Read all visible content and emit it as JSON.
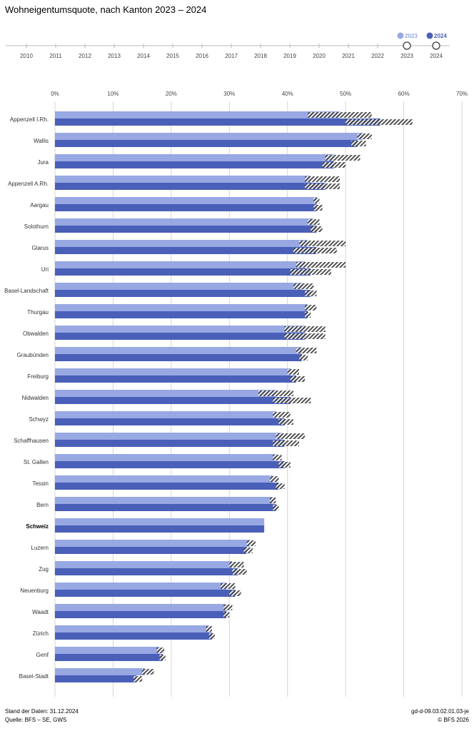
{
  "title": "Wohneigentumsquote, nach Kanton 2023 – 2024",
  "timeline": {
    "years": [
      "2010",
      "2011",
      "2012",
      "2013",
      "2014",
      "2015",
      "2016",
      "2017",
      "2018",
      "2019",
      "2020",
      "2021",
      "2022",
      "2023",
      "2024"
    ],
    "selected": [
      "2023",
      "2024"
    ],
    "legend": [
      {
        "label": "2023",
        "color": "#98a8e3"
      },
      {
        "label": "2024",
        "color": "#4a5fb8"
      }
    ]
  },
  "colors": {
    "bar_2023": "#98a8e3",
    "bar_2024": "#4a5fb8",
    "grid": "#d4d4d4",
    "hatch": "#333333"
  },
  "chart_data": {
    "type": "bar",
    "orientation": "horizontal",
    "xlim": [
      0,
      70
    ],
    "x_ticks": [
      "0%",
      "10%",
      "20%",
      "30%",
      "40%",
      "50%",
      "60%",
      "70%"
    ],
    "confidence_interval_shown": true,
    "series": [
      {
        "name": "2023",
        "values": [
          49.0,
          53.0,
          48.0,
          44.0,
          45.0,
          44.5,
          43.5,
          43.0,
          42.5,
          43.5,
          43.0,
          42.5,
          40.5,
          38.0,
          38.0,
          39.0,
          38.0,
          37.5,
          37.5,
          36.0,
          33.5,
          30.5,
          29.5,
          29.5,
          26.5,
          18.0,
          15.5
        ],
        "ci": [
          [
            43.5,
            54.5
          ],
          [
            52.0,
            54.5
          ],
          [
            46.5,
            52.5
          ],
          [
            43.0,
            49.0
          ],
          [
            44.5,
            45.5
          ],
          [
            43.5,
            45.5
          ],
          [
            42.0,
            50.0
          ],
          [
            41.5,
            50.0
          ],
          [
            41.0,
            44.5
          ],
          [
            43.0,
            45.0
          ],
          [
            39.5,
            46.5
          ],
          [
            41.5,
            45.0
          ],
          [
            40.0,
            42.0
          ],
          [
            35.0,
            41.0
          ],
          [
            37.5,
            40.5
          ],
          [
            38.0,
            43.0
          ],
          [
            37.5,
            39.0
          ],
          [
            37.0,
            38.5
          ],
          [
            37.0,
            38.0
          ],
          [
            35.8,
            36.2
          ],
          [
            33.0,
            34.5
          ],
          [
            30.0,
            32.5
          ],
          [
            28.5,
            31.0
          ],
          [
            29.0,
            30.5
          ],
          [
            26.0,
            27.0
          ],
          [
            17.5,
            18.8
          ],
          [
            15.0,
            17.0
          ]
        ]
      },
      {
        "name": "2024",
        "values": [
          56.0,
          52.0,
          48.0,
          46.5,
          45.0,
          45.0,
          45.0,
          44.0,
          44.0,
          43.5,
          43.0,
          42.5,
          41.5,
          40.5,
          39.5,
          39.5,
          39.5,
          38.5,
          38.0,
          36.0,
          33.0,
          31.5,
          31.0,
          29.5,
          27.0,
          18.5,
          14.0
        ],
        "ci": [
          [
            50.0,
            61.5
          ],
          [
            51.0,
            53.5
          ],
          [
            46.0,
            50.0
          ],
          [
            43.0,
            49.0
          ],
          [
            44.5,
            46.0
          ],
          [
            44.0,
            46.0
          ],
          [
            41.0,
            48.5
          ],
          [
            40.5,
            47.5
          ],
          [
            43.0,
            45.0
          ],
          [
            43.0,
            44.0
          ],
          [
            39.5,
            46.5
          ],
          [
            42.0,
            43.5
          ],
          [
            40.5,
            43.0
          ],
          [
            37.5,
            44.0
          ],
          [
            38.5,
            41.0
          ],
          [
            37.5,
            42.0
          ],
          [
            38.5,
            40.5
          ],
          [
            38.0,
            39.5
          ],
          [
            37.5,
            38.5
          ],
          [
            35.8,
            36.2
          ],
          [
            32.5,
            34.0
          ],
          [
            30.5,
            33.0
          ],
          [
            30.0,
            32.0
          ],
          [
            29.0,
            30.0
          ],
          [
            26.5,
            27.5
          ],
          [
            18.0,
            19.0
          ],
          [
            13.5,
            15.0
          ]
        ]
      }
    ],
    "categories": [
      "Appenzell I.Rh.",
      "Wallis",
      "Jura",
      "Appenzell A.Rh.",
      "Aargau",
      "Solothurn",
      "Glarus",
      "Uri",
      "Basel-Landschaft",
      "Thurgau",
      "Obwalden",
      "Graubünden",
      "Freiburg",
      "Nidwalden",
      "Schwyz",
      "Schaffhausen",
      "St. Gallen",
      "Tessin",
      "Bern",
      "Schweiz",
      "Luzern",
      "Zug",
      "Neuenburg",
      "Waadt",
      "Zürich",
      "Genf",
      "Basel-Stadt"
    ],
    "bold_categories": [
      "Schweiz"
    ]
  },
  "footer": {
    "date": "Stand der Daten: 31.12.2024",
    "source": "Quelle: BFS – SE, GWS",
    "code": "gd-d-09.03.02.01.03-je",
    "copyright": "© BFS 2026"
  }
}
